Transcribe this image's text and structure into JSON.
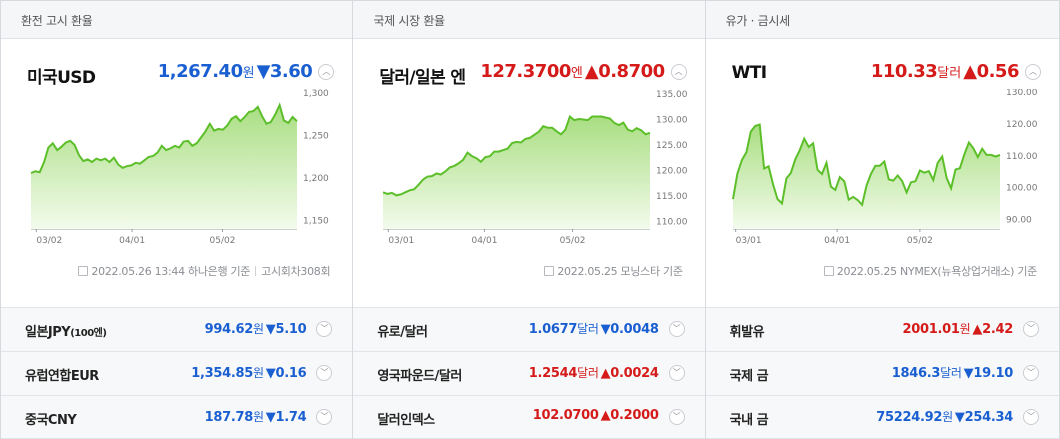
{
  "columns": [
    {
      "header": "환전 고시 환율",
      "main": {
        "name": "미국USD",
        "value": "1,267.40",
        "unit": "원",
        "arrow": "▼",
        "change": "3.60",
        "dir": "down"
      },
      "source": {
        "date": "2022.05.26 13:44 하나은행 기준",
        "extra": "고시회차308회"
      },
      "list": [
        {
          "name": "일본JPY",
          "sub": "(100엔)",
          "value": "994.62",
          "unit": "원",
          "arrow": "▼",
          "change": "5.10",
          "dir": "down"
        },
        {
          "name": "유럽연합EUR",
          "sub": "",
          "value": "1,354.85",
          "unit": "원",
          "arrow": "▼",
          "change": "0.16",
          "dir": "down"
        },
        {
          "name": "중국CNY",
          "sub": "",
          "value": "187.78",
          "unit": "원",
          "arrow": "▼",
          "change": "1.74",
          "dir": "down"
        }
      ]
    },
    {
      "header": "국제 시장 환율",
      "main": {
        "name": "달러/일본 엔",
        "value": "127.3700",
        "unit": "엔",
        "arrow": "▲",
        "change": "0.8700",
        "dir": "up"
      },
      "source": {
        "date": "2022.05.25 모닝스타 기준",
        "extra": ""
      },
      "list": [
        {
          "name": "유로/달러",
          "sub": "",
          "value": "1.0677",
          "unit": "달러",
          "arrow": "▼",
          "change": "0.0048",
          "dir": "down"
        },
        {
          "name": "영국파운드/달러",
          "sub": "",
          "value": "1.2544",
          "unit": "달러",
          "arrow": "▲",
          "change": "0.0024",
          "dir": "up"
        },
        {
          "name": "달러인덱스",
          "sub": "",
          "value": "102.0700",
          "unit": "",
          "arrow": "▲",
          "change": "0.2000",
          "dir": "up"
        }
      ]
    },
    {
      "header": "유가 · 금시세",
      "main": {
        "name": "WTI",
        "value": "110.33",
        "unit": "달러",
        "arrow": "▲",
        "change": "0.56",
        "dir": "up"
      },
      "source": {
        "date": "2022.05.25 NYMEX(뉴욕상업거래소) 기준",
        "extra": ""
      },
      "list": [
        {
          "name": "휘발유",
          "sub": "",
          "value": "2001.01",
          "unit": "원",
          "arrow": "▲",
          "change": "2.42",
          "dir": "up"
        },
        {
          "name": "국제 금",
          "sub": "",
          "value": "1846.3",
          "unit": "달러",
          "arrow": "▼",
          "change": "19.10",
          "dir": "down"
        },
        {
          "name": "국내 금",
          "sub": "",
          "value": "75224.92",
          "unit": "원",
          "arrow": "▼",
          "change": "254.34",
          "dir": "down"
        }
      ]
    }
  ],
  "colors": {
    "up": "#d51a1a",
    "down": "#1a5fd1",
    "line": "#5cbf2a",
    "fill_top": "#a9de82",
    "fill_bottom": "#f3fbec"
  },
  "chart_data": [
    {
      "type": "area",
      "x_ticks": [
        "03/02",
        "04/01",
        "05/02"
      ],
      "y_ticks": [
        "1,300",
        "1,250",
        "1,200",
        "1,150"
      ],
      "ylim": [
        1140,
        1305
      ],
      "x": [
        "03/01",
        "03/02",
        "03/03",
        "03/04",
        "03/07",
        "03/08",
        "03/09",
        "03/10",
        "03/11",
        "03/14",
        "03/15",
        "03/16",
        "03/17",
        "03/18",
        "03/21",
        "03/22",
        "03/23",
        "03/24",
        "03/25",
        "03/28",
        "03/29",
        "03/30",
        "03/31",
        "04/01",
        "04/04",
        "04/05",
        "04/06",
        "04/07",
        "04/08",
        "04/11",
        "04/12",
        "04/13",
        "04/14",
        "04/15",
        "04/18",
        "04/19",
        "04/20",
        "04/21",
        "04/22",
        "04/25",
        "04/26",
        "04/27",
        "04/28",
        "04/29",
        "05/02",
        "05/03",
        "05/04",
        "05/06",
        "05/09",
        "05/10",
        "05/11",
        "05/12",
        "05/13",
        "05/16",
        "05/17",
        "05/18",
        "05/19",
        "05/20",
        "05/23",
        "05/24",
        "05/25",
        "05/26"
      ],
      "values": [
        1206,
        1208,
        1207,
        1219,
        1236,
        1241,
        1233,
        1237,
        1242,
        1244,
        1239,
        1227,
        1220,
        1222,
        1219,
        1223,
        1221,
        1223,
        1219,
        1224,
        1216,
        1212,
        1214,
        1215,
        1218,
        1217,
        1221,
        1225,
        1226,
        1230,
        1238,
        1233,
        1235,
        1238,
        1236,
        1243,
        1244,
        1238,
        1241,
        1248,
        1255,
        1264,
        1256,
        1258,
        1257,
        1262,
        1270,
        1273,
        1267,
        1272,
        1278,
        1279,
        1284,
        1273,
        1264,
        1266,
        1275,
        1286,
        1268,
        1265,
        1272,
        1267
      ]
    },
    {
      "type": "area",
      "x_ticks": [
        "03/01",
        "04/01",
        "05/02"
      ],
      "y_ticks": [
        "135.00",
        "130.00",
        "125.00",
        "120.00",
        "115.00",
        "110.00"
      ],
      "ylim": [
        108.5,
        136
      ],
      "x": [
        "03/01",
        "03/02",
        "03/03",
        "03/04",
        "03/07",
        "03/08",
        "03/09",
        "03/10",
        "03/11",
        "03/14",
        "03/15",
        "03/16",
        "03/17",
        "03/18",
        "03/21",
        "03/22",
        "03/23",
        "03/24",
        "03/25",
        "03/28",
        "03/29",
        "03/30",
        "03/31",
        "04/01",
        "04/04",
        "04/05",
        "04/06",
        "04/07",
        "04/08",
        "04/11",
        "04/12",
        "04/13",
        "04/14",
        "04/15",
        "04/18",
        "04/19",
        "04/20",
        "04/21",
        "04/22",
        "04/25",
        "04/26",
        "04/27",
        "04/28",
        "04/29",
        "05/02",
        "05/03",
        "05/04",
        "05/06",
        "05/09",
        "05/10",
        "05/11",
        "05/12",
        "05/13",
        "05/16",
        "05/17",
        "05/18",
        "05/19",
        "05/20",
        "05/23",
        "05/24",
        "05/25"
      ],
      "values": [
        115.7,
        115.4,
        115.6,
        115.1,
        115.3,
        115.7,
        116.1,
        116.3,
        117.2,
        118.2,
        118.8,
        118.9,
        119.4,
        119.2,
        119.8,
        120.6,
        120.9,
        121.4,
        122.1,
        123.5,
        122.8,
        122.4,
        121.7,
        122.6,
        122.8,
        123.7,
        123.7,
        124.0,
        124.3,
        125.4,
        125.6,
        125.5,
        126.2,
        126.4,
        127.0,
        127.6,
        128.7,
        128.4,
        128.4,
        127.7,
        127.1,
        128.0,
        130.6,
        129.9,
        130.1,
        130.0,
        129.9,
        130.6,
        130.6,
        130.6,
        130.4,
        130.2,
        129.3,
        128.9,
        129.4,
        128.0,
        127.7,
        128.3,
        127.9,
        127.1,
        127.4
      ]
    },
    {
      "type": "area",
      "x_ticks": [
        "03/01",
        "04/01",
        "05/02"
      ],
      "y_ticks": [
        "130.00",
        "120.00",
        "110.00",
        "100.00",
        "90.00"
      ],
      "ylim": [
        87,
        131
      ],
      "x": [
        "03/01",
        "03/02",
        "03/03",
        "03/04",
        "03/07",
        "03/08",
        "03/09",
        "03/10",
        "03/11",
        "03/14",
        "03/15",
        "03/16",
        "03/17",
        "03/18",
        "03/21",
        "03/22",
        "03/23",
        "03/24",
        "03/25",
        "03/28",
        "03/29",
        "03/30",
        "03/31",
        "04/01",
        "04/04",
        "04/05",
        "04/06",
        "04/07",
        "04/08",
        "04/11",
        "04/12",
        "04/13",
        "04/14",
        "04/15",
        "04/18",
        "04/19",
        "04/20",
        "04/21",
        "04/22",
        "04/25",
        "04/26",
        "04/27",
        "04/28",
        "04/29",
        "05/02",
        "05/03",
        "05/04",
        "05/06",
        "05/09",
        "05/10",
        "05/11",
        "05/12",
        "05/13",
        "05/16",
        "05/17",
        "05/18",
        "05/19",
        "05/20",
        "05/23",
        "05/24",
        "05/25"
      ],
      "values": [
        96.4,
        104.4,
        108.7,
        111.1,
        117.6,
        119.4,
        119.8,
        106.0,
        106.7,
        101.1,
        96.4,
        95.0,
        102.9,
        104.6,
        108.9,
        111.8,
        115.4,
        112.8,
        113.9,
        105.6,
        104.3,
        107.8,
        100.3,
        99.3,
        103.3,
        102.0,
        96.2,
        97.1,
        96.1,
        94.6,
        100.6,
        104.3,
        106.9,
        106.9,
        108.2,
        102.6,
        102.2,
        103.8,
        102.1,
        98.5,
        101.7,
        102.0,
        105.4,
        104.7,
        105.2,
        102.4,
        107.8,
        109.8,
        103.1,
        99.8,
        105.7,
        106.1,
        110.5,
        114.2,
        112.4,
        109.6,
        112.2,
        110.3,
        110.3,
        109.8,
        110.3
      ]
    }
  ]
}
